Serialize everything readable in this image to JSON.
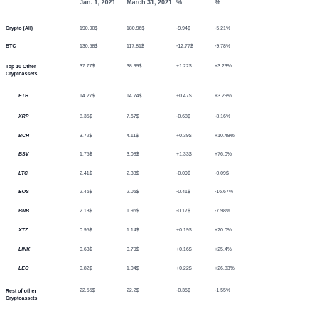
{
  "table": {
    "headers": [
      "",
      "Jan. 1, 2021",
      "March 31, 2021",
      "%",
      "%"
    ],
    "rows": [
      {
        "label": "Crypto (All)",
        "indent": false,
        "v1": "190.90$",
        "v2": "180.96$",
        "v3": "-9.94$",
        "v4": "-5.21%"
      },
      {
        "label": "BTC",
        "indent": false,
        "v1": "130.58$",
        "v2": "117.81$",
        "v3": "-12.77$",
        "v4": "-9.78%"
      },
      {
        "label": "Top 10 Other Cryptoassets",
        "indent": false,
        "v1": "37.77$",
        "v2": "38.99$",
        "v3": "+1.22$",
        "v4": "+3.23%"
      },
      {
        "label": "ETH",
        "indent": true,
        "v1": "14.27$",
        "v2": "14.74$",
        "v3": "+0.47$",
        "v4": "+3.29%"
      },
      {
        "label": "XRP",
        "indent": true,
        "v1": "8.35$",
        "v2": "7.67$",
        "v3": "-0.68$",
        "v4": "-8.16%"
      },
      {
        "label": "BCH",
        "indent": true,
        "v1": "3.72$",
        "v2": "4.11$",
        "v3": "+0.39$",
        "v4": "+10.48%"
      },
      {
        "label": "BSV",
        "indent": true,
        "v1": "1.75$",
        "v2": "3.08$",
        "v3": "+1.33$",
        "v4": "+76.0%"
      },
      {
        "label": "LTC",
        "indent": true,
        "v1": "2.41$",
        "v2": "2.33$",
        "v3": "-0.09$",
        "v4": "-0.09$"
      },
      {
        "label": "EOS",
        "indent": true,
        "v1": "2.46$",
        "v2": "2.05$",
        "v3": "-0.41$",
        "v4": "-16.67%"
      },
      {
        "label": "BNB",
        "indent": true,
        "v1": "2.13$",
        "v2": "1.96$",
        "v3": "-0.17$",
        "v4": "-7.98%"
      },
      {
        "label": "XTZ",
        "indent": true,
        "v1": "0.95$",
        "v2": "1.14$",
        "v3": "+0.19$",
        "v4": "+20.0%"
      },
      {
        "label": "LINK",
        "indent": true,
        "v1": "0.63$",
        "v2": "0.79$",
        "v3": "+0.16$",
        "v4": "+25.4%"
      },
      {
        "label": "LEO",
        "indent": true,
        "v1": "0.82$",
        "v2": "1.04$",
        "v3": "+0.22$",
        "v4": "+26.83%"
      },
      {
        "label": "Rest of other Cryptoassets",
        "indent": false,
        "v1": "22.55$",
        "v2": "22.2$",
        "v3": "-0.35$",
        "v4": "-1.55%"
      }
    ]
  }
}
